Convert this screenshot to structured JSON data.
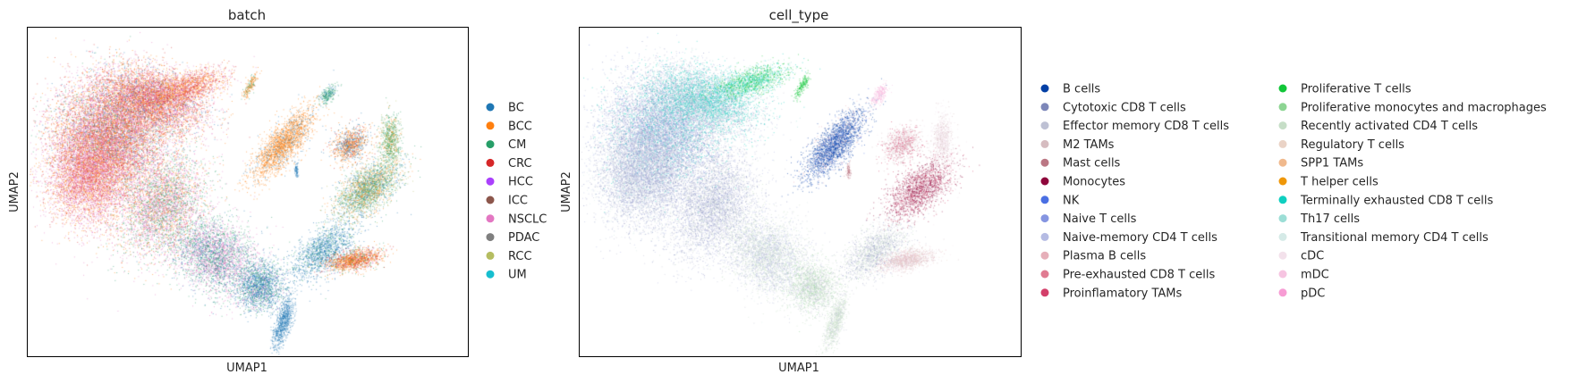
{
  "chart_data": [
    {
      "type": "scatter",
      "title": "batch",
      "xlabel": "UMAP1",
      "ylabel": "UMAP2",
      "grid": false,
      "legend_position": "right",
      "series": [
        {
          "name": "BC",
          "color": "#1f77b4"
        },
        {
          "name": "BCC",
          "color": "#ff7f0e"
        },
        {
          "name": "CM",
          "color": "#279e68"
        },
        {
          "name": "CRC",
          "color": "#d62728"
        },
        {
          "name": "HCC",
          "color": "#aa40fc"
        },
        {
          "name": "ICC",
          "color": "#8c564b"
        },
        {
          "name": "NSCLC",
          "color": "#e377c2"
        },
        {
          "name": "PDAC",
          "color": "#7f7f7f"
        },
        {
          "name": "RCC",
          "color": "#b5bd61"
        },
        {
          "name": "UM",
          "color": "#17becf"
        }
      ]
    },
    {
      "type": "scatter",
      "title": "cell_type",
      "xlabel": "UMAP1",
      "ylabel": "UMAP2",
      "grid": false,
      "legend_position": "right",
      "series": [
        {
          "name": "B cells",
          "color": "#023fa5"
        },
        {
          "name": "Cytotoxic CD8 T cells",
          "color": "#7d87b9"
        },
        {
          "name": "Effector memory CD8 T cells",
          "color": "#bec1d4"
        },
        {
          "name": "M2 TAMs",
          "color": "#d6bcc0"
        },
        {
          "name": "Mast cells",
          "color": "#bb7784"
        },
        {
          "name": "Monocytes",
          "color": "#8e063b"
        },
        {
          "name": "NK",
          "color": "#4a6fe3"
        },
        {
          "name": "Naive T cells",
          "color": "#8595e1"
        },
        {
          "name": "Naive-memory CD4 T cells",
          "color": "#b5bbe3"
        },
        {
          "name": "Plasma B cells",
          "color": "#e6afb9"
        },
        {
          "name": "Pre-exhausted CD8 T cells",
          "color": "#e07b91"
        },
        {
          "name": "Proinflamatory TAMs",
          "color": "#d33f6a"
        },
        {
          "name": "Proliferative T cells",
          "color": "#11c638"
        },
        {
          "name": "Proliferative monocytes and macrophages",
          "color": "#8dd593"
        },
        {
          "name": "Recently activated CD4 T cells",
          "color": "#c6dec7"
        },
        {
          "name": "Regulatory T cells",
          "color": "#ead3c6"
        },
        {
          "name": "SPP1 TAMs",
          "color": "#f0b98d"
        },
        {
          "name": "T helper cells",
          "color": "#ef9708"
        },
        {
          "name": "Terminally exhausted CD8 T cells",
          "color": "#0fcfc0"
        },
        {
          "name": "Th17 cells",
          "color": "#9cded6"
        },
        {
          "name": "Transitional memory CD4 T cells",
          "color": "#d5eae7"
        },
        {
          "name": "cDC",
          "color": "#f3e1eb"
        },
        {
          "name": "mDC",
          "color": "#f6c4e1"
        },
        {
          "name": "pDC",
          "color": "#f79cd4"
        }
      ]
    }
  ]
}
